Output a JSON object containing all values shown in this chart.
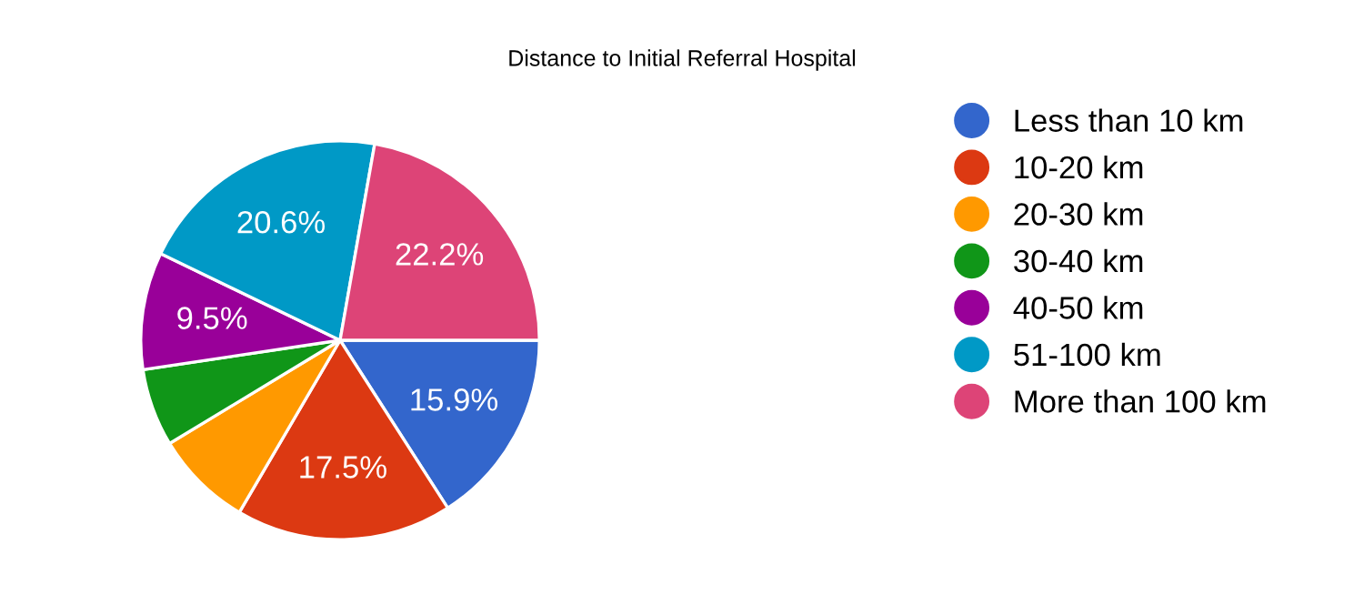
{
  "chart_data": {
    "type": "pie",
    "title": "Distance to Initial Referral Hospital",
    "categories": [
      "Less than 10 km",
      "10-20 km",
      "20-30 km",
      "30-40 km",
      "40-50 km",
      "51-100 km",
      "More than 100 km"
    ],
    "values": [
      15.9,
      17.5,
      7.9,
      6.3,
      9.5,
      20.6,
      22.2
    ],
    "colors": [
      "#3366cc",
      "#dc3912",
      "#ff9900",
      "#109618",
      "#990099",
      "#0099c6",
      "#dd4477"
    ],
    "value_labels": [
      "15.9%",
      "17.5%",
      null,
      null,
      "9.5%",
      "20.6%",
      "22.2%"
    ],
    "legend": "right"
  }
}
